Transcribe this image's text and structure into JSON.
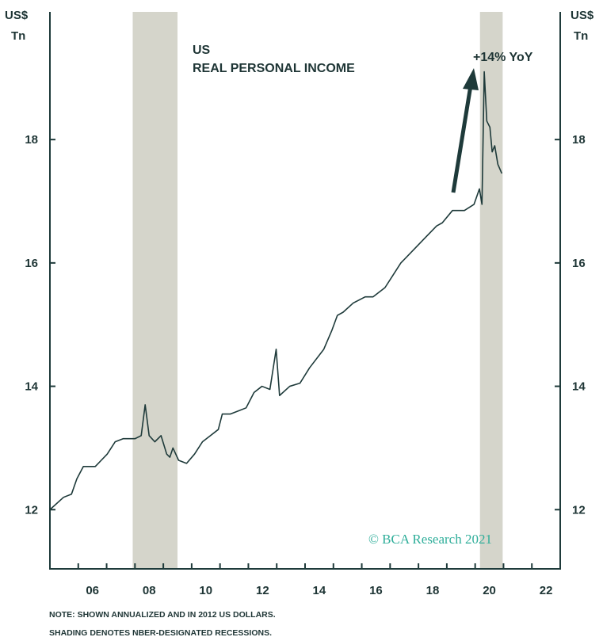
{
  "chart_data": {
    "type": "line",
    "title": "US",
    "subtitle": "REAL PERSONAL INCOME",
    "y_label": [
      "US$",
      "Tn"
    ],
    "annotation": "+14% YoY",
    "watermark": "© BCA Research 2021",
    "notes": [
      "NOTE: SHOWN ANNUALIZED AND IN 2012 US DOLLARS.",
      "SHADING DENOTES NBER-DESIGNATED RECESSIONS."
    ],
    "xlim": [
      2005,
      2023
    ],
    "xticks": [
      {
        "value": 2006,
        "label": "06"
      },
      {
        "value": 2008,
        "label": "08"
      },
      {
        "value": 2010,
        "label": "10"
      },
      {
        "value": 2012,
        "label": "12"
      },
      {
        "value": 2014,
        "label": "14"
      },
      {
        "value": 2016,
        "label": "16"
      },
      {
        "value": 2018,
        "label": "18"
      },
      {
        "value": 2020,
        "label": "20"
      },
      {
        "value": 2022,
        "label": "22"
      }
    ],
    "xminor_ticks": [
      2005,
      2007,
      2009,
      2011,
      2013,
      2015,
      2017,
      2019,
      2021,
      2023
    ],
    "ylim": [
      11.04,
      20.07
    ],
    "yticks": [
      12,
      14,
      16,
      18
    ],
    "recessions": [
      [
        2007.92,
        2009.5
      ],
      [
        2020.17,
        2020.97
      ]
    ],
    "recession_color": "#d5d5cb",
    "series": [
      {
        "name": "Real personal income",
        "color": "#1e3a3a",
        "x": [
          2005.0,
          2005.48,
          2005.76,
          2005.95,
          2006.18,
          2006.6,
          2007.02,
          2007.3,
          2007.58,
          2008.0,
          2008.22,
          2008.36,
          2008.5,
          2008.7,
          2008.92,
          2009.12,
          2009.23,
          2009.34,
          2009.54,
          2009.82,
          2010.1,
          2010.38,
          2010.66,
          2010.94,
          2011.08,
          2011.36,
          2011.64,
          2011.92,
          2012.2,
          2012.48,
          2012.76,
          2012.98,
          2013.1,
          2013.46,
          2013.82,
          2014.16,
          2014.66,
          2014.94,
          2015.14,
          2015.34,
          2015.7,
          2016.12,
          2016.4,
          2016.82,
          2017.1,
          2017.38,
          2017.8,
          2018.22,
          2018.64,
          2018.84,
          2019.2,
          2019.62,
          2019.96,
          2020.15,
          2020.24,
          2020.32,
          2020.41,
          2020.52,
          2020.6,
          2020.69,
          2020.8,
          2020.94
        ],
        "values": [
          12.0,
          12.2,
          12.25,
          12.5,
          12.7,
          12.7,
          12.9,
          13.1,
          13.15,
          13.15,
          13.2,
          13.7,
          13.2,
          13.1,
          13.2,
          12.9,
          12.85,
          13.0,
          12.8,
          12.75,
          12.9,
          13.1,
          13.2,
          13.3,
          13.55,
          13.55,
          13.6,
          13.65,
          13.9,
          14.0,
          13.95,
          14.6,
          13.85,
          14.0,
          14.05,
          14.3,
          14.6,
          14.9,
          15.15,
          15.2,
          15.35,
          15.45,
          15.45,
          15.6,
          15.8,
          16.0,
          16.2,
          16.4,
          16.6,
          16.65,
          16.85,
          16.85,
          16.95,
          17.2,
          16.95,
          19.1,
          18.3,
          18.2,
          17.8,
          17.9,
          17.6,
          17.45
        ]
      }
    ]
  }
}
